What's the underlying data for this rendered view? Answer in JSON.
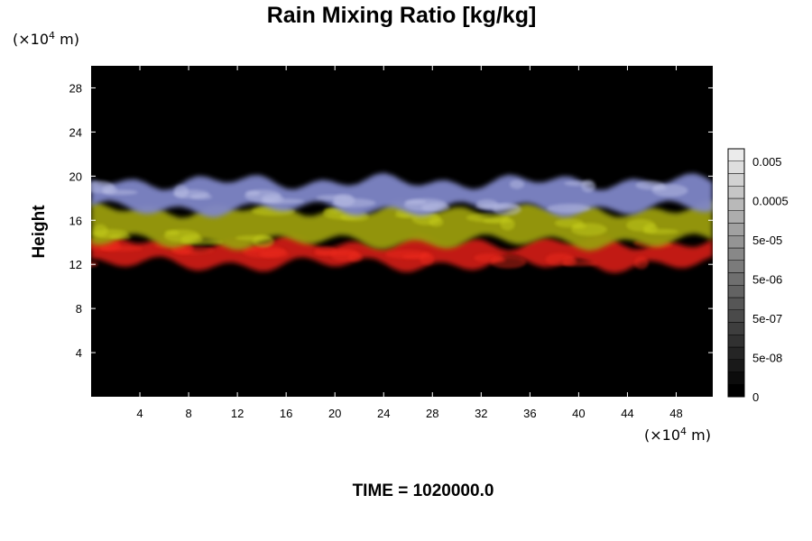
{
  "chart_data": {
    "type": "heatmap",
    "title": "Rain Mixing Ratio [kg/kg]",
    "ylabel": "Height",
    "xlabel": "",
    "x_unit": "(×10",
    "x_unit_exp": "4",
    "x_unit_tail": " m)",
    "y_unit": "(×10",
    "y_unit_exp": "4",
    "y_unit_tail": " m)",
    "xlim": [
      0,
      51
    ],
    "ylim": [
      0,
      30
    ],
    "x_ticks": [
      4,
      8,
      12,
      16,
      20,
      24,
      28,
      32,
      36,
      40,
      44,
      48
    ],
    "y_ticks": [
      4,
      8,
      12,
      16,
      20,
      24,
      28
    ],
    "colorbar": {
      "labels": [
        "0",
        "5e-08",
        "5e-07",
        "5e-06",
        "5e-05",
        "0.0005",
        "0.005"
      ],
      "levels": 20
    },
    "layers": [
      {
        "color": "#cc1a14",
        "bottom": 12.0,
        "top": 14.0
      },
      {
        "color": "#9a9c10",
        "bottom": 14.0,
        "top": 17.0
      },
      {
        "color": "#7f86c8",
        "bottom": 17.0,
        "top": 19.5
      }
    ],
    "background": "#000000",
    "time_label": "TIME = 1020000.0"
  }
}
